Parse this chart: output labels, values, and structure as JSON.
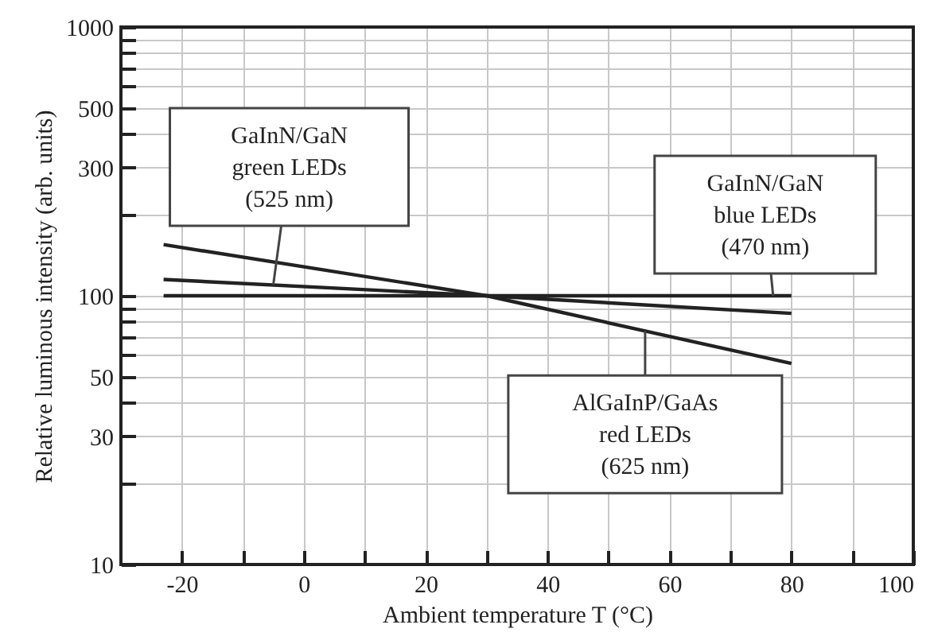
{
  "chart_data": {
    "type": "line",
    "xlabel": "Ambient temperature  T  (°C)",
    "ylabel": "Relative luminous intensity  (arb. units)",
    "series": [
      {
        "color": "#222222",
        "x": [
          -23,
          30,
          80
        ],
        "values": [
          155,
          100,
          56
        ]
      },
      {
        "color": "#222222",
        "x": [
          -23,
          30,
          80
        ],
        "values": [
          115,
          100,
          86
        ]
      },
      {
        "color": "#222222",
        "x": [
          -23,
          80
        ],
        "values": [
          100,
          100
        ]
      }
    ],
    "annotations": [
      {
        "text": "GaInN/GaN\ngreen LEDs\n(525 nm)",
        "x": -5,
        "y": 110
      },
      {
        "text": "GaInN/GaN\nblue LEDs\n(470 nm)",
        "x": 77,
        "y": 100
      },
      {
        "text": "AlGaInP/GaAs\nred LEDs\n(625 nm)",
        "x": 56,
        "y": 74
      }
    ],
    "log": "y",
    "xlim": [
      -30,
      100
    ],
    "ylim": [
      10,
      1000
    ],
    "xticks": [
      -20,
      {
        "value": -10,
        "label": null
      },
      0,
      {
        "value": 10,
        "label": null
      },
      20,
      {
        "value": 30,
        "label": null
      },
      40,
      {
        "value": 50,
        "label": null
      },
      60,
      {
        "value": 70,
        "label": null
      },
      80,
      {
        "value": 90,
        "label": null
      },
      100
    ],
    "yticks": [
      10,
      {
        "value": 20,
        "label": null
      },
      30,
      {
        "value": 40,
        "label": null
      },
      50,
      {
        "value": 60,
        "label": null
      },
      {
        "value": 70,
        "label": null
      },
      {
        "value": 80,
        "label": null
      },
      {
        "value": 90,
        "label": null
      },
      100,
      {
        "value": 200,
        "label": null
      },
      300,
      {
        "value": 400,
        "label": null
      },
      500,
      {
        "value": 600,
        "label": null
      },
      {
        "value": 700,
        "label": null
      },
      {
        "value": 800,
        "label": null
      },
      {
        "value": 900,
        "label": null
      },
      1000
    ],
    "grid": true,
    "line_style": "solid"
  }
}
